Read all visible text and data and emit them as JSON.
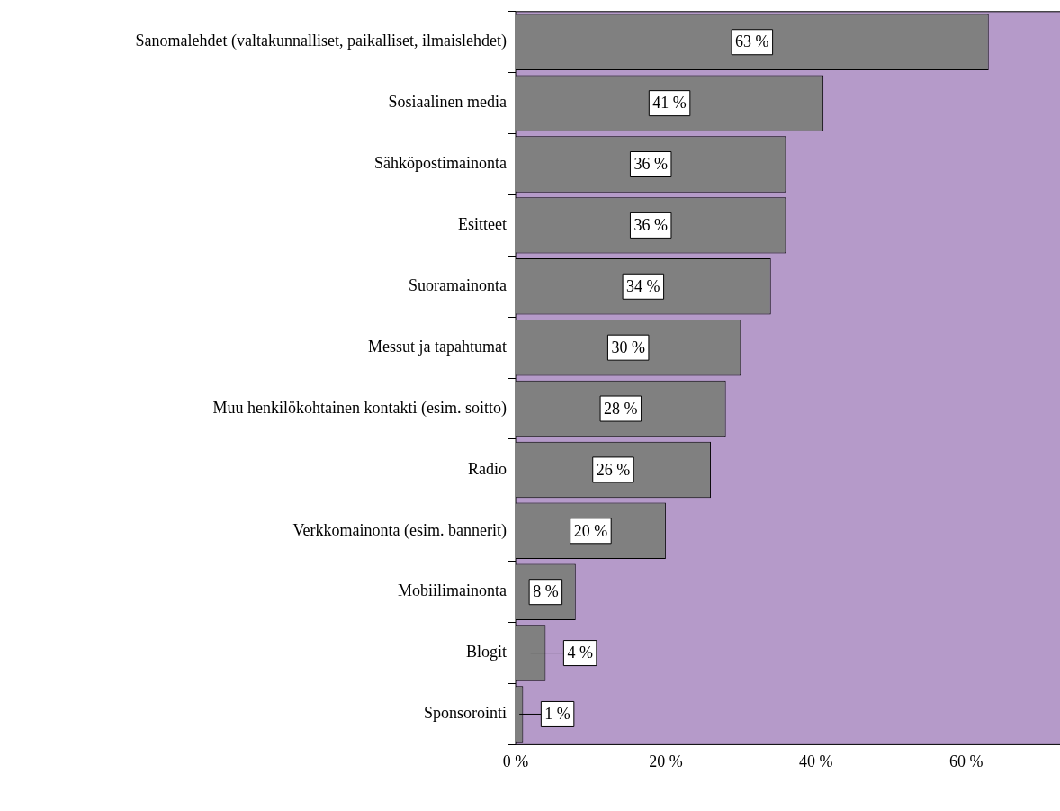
{
  "chart_data": {
    "type": "bar",
    "orientation": "horizontal",
    "categories": [
      "Sanomalehdet (valtakunnalliset, paikalliset, ilmaislehdet)",
      "Sosiaalinen media",
      "Sähköpostimainonta",
      "Esitteet",
      "Suoramainonta",
      "Messut ja tapahtumat",
      "Muu henkilökohtainen kontakti (esim. soitto)",
      "Radio",
      "Verkkomainonta (esim. bannerit)",
      "Mobiilimainonta",
      "Blogit",
      "Sponsorointi"
    ],
    "values": [
      63,
      41,
      36,
      36,
      34,
      30,
      28,
      26,
      20,
      8,
      4,
      1
    ],
    "value_labels": [
      "63 %",
      "41 %",
      "36 %",
      "36 %",
      "34 %",
      "30 %",
      "28 %",
      "26 %",
      "20 %",
      "8 %",
      "4 %",
      "1 %"
    ],
    "color": "#808080",
    "xlim": [
      0,
      72.5
    ],
    "xticks": [
      {
        "value": 0,
        "label": "0 %"
      },
      {
        "value": 20,
        "label": "20 %"
      },
      {
        "value": 40,
        "label": "40 %"
      },
      {
        "value": 60,
        "label": "60 %"
      }
    ],
    "grid": false,
    "legend": false
  }
}
